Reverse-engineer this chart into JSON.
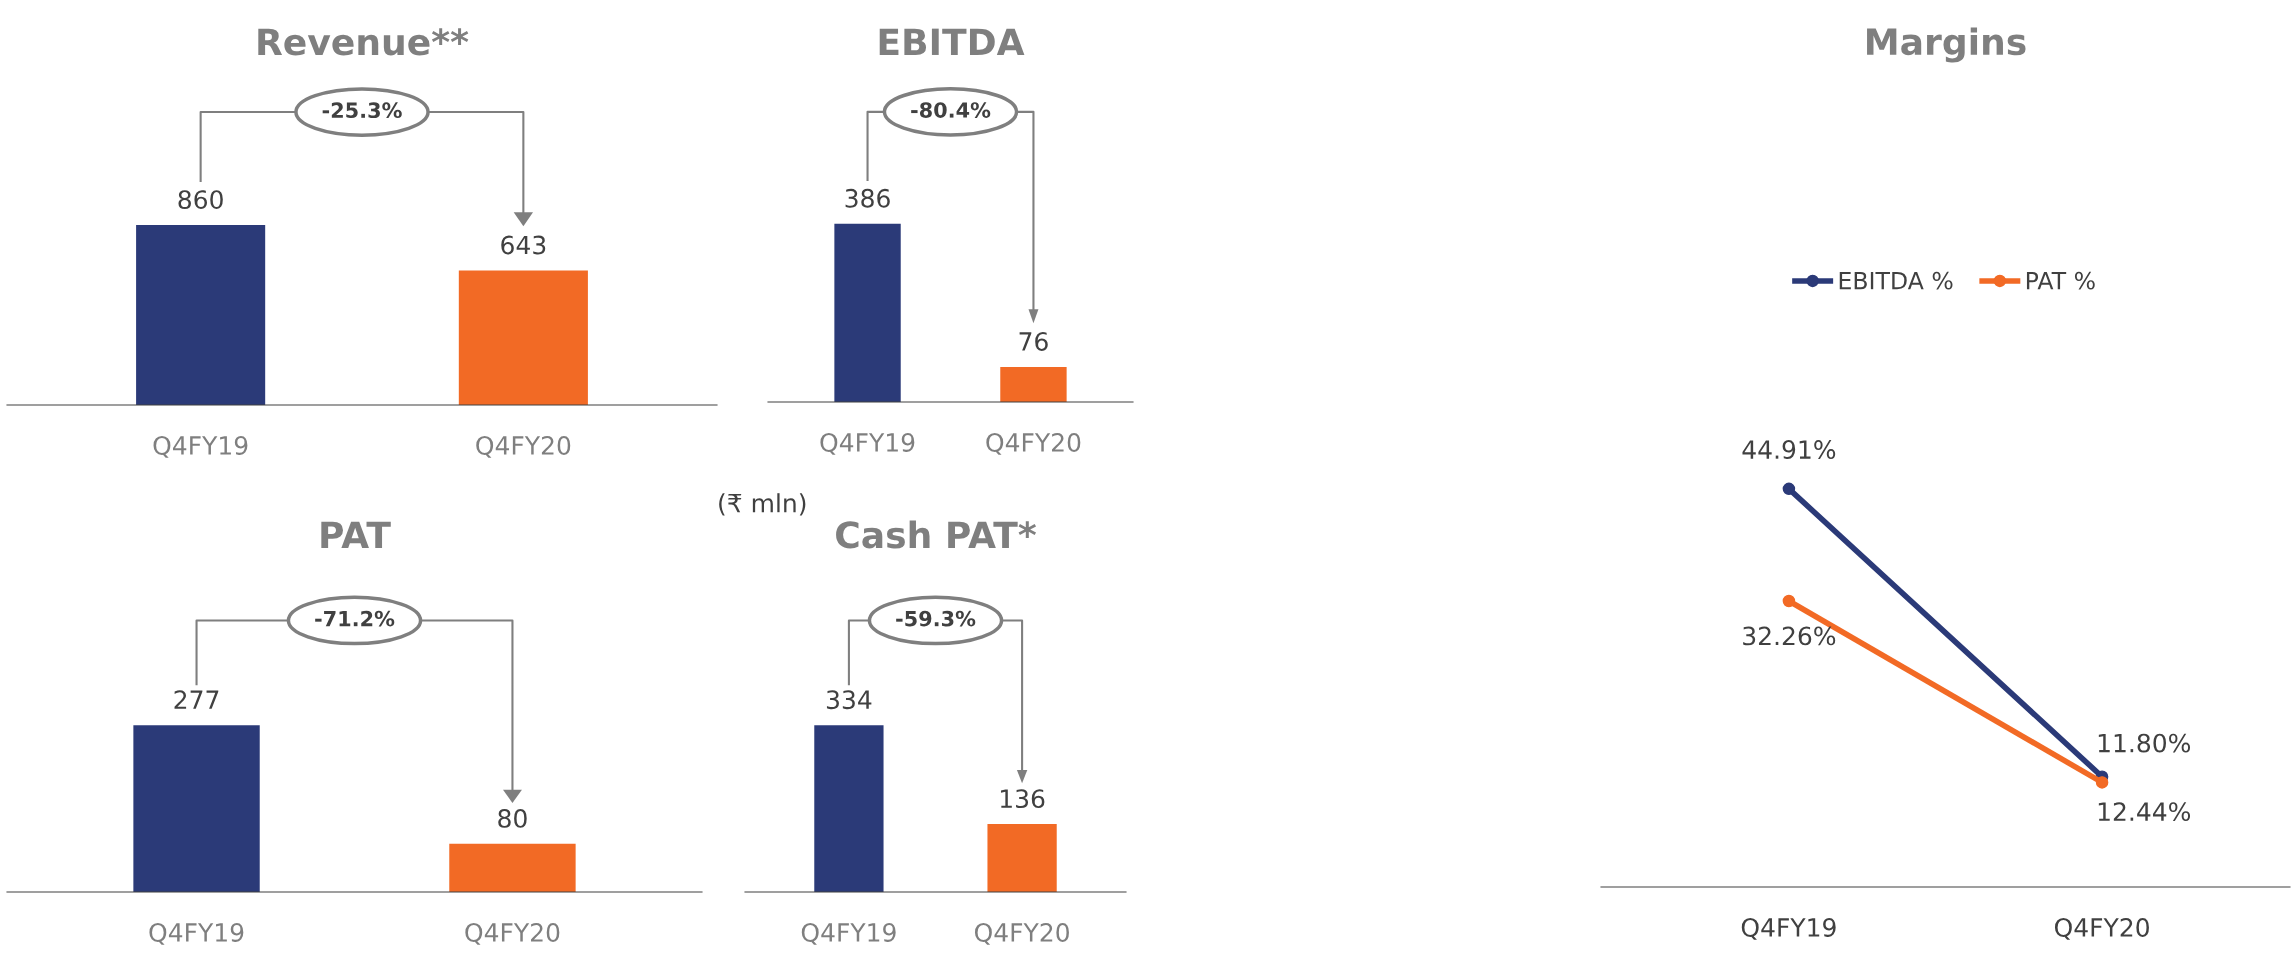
{
  "chart_data": [
    {
      "type": "bar",
      "title": "Revenue**",
      "categories": [
        "Q4FY19",
        "Q4FY20"
      ],
      "values": [
        860,
        643
      ],
      "colors": [
        "#2b3a78",
        "#f26a25"
      ],
      "data_labels": true,
      "annotations": [
        "-25.3%",
        "(₹ mln)"
      ]
    },
    {
      "type": "bar",
      "title": "EBITDA",
      "categories": [
        "Q4FY19",
        "Q4FY20"
      ],
      "values": [
        386,
        76
      ],
      "colors": [
        "#2b3a78",
        "#f26a25"
      ],
      "data_labels": true,
      "annotations": [
        "-80.4%"
      ]
    },
    {
      "type": "bar",
      "title": "PAT",
      "categories": [
        "Q4FY19",
        "Q4FY20"
      ],
      "values": [
        277,
        80
      ],
      "colors": [
        "#2b3a78",
        "#f26a25"
      ],
      "data_labels": true,
      "annotations": [
        "-71.2%"
      ]
    },
    {
      "type": "bar",
      "title": "Cash PAT*",
      "categories": [
        "Q4FY19",
        "Q4FY20"
      ],
      "values": [
        334,
        136
      ],
      "colors": [
        "#2b3a78",
        "#f26a25"
      ],
      "data_labels": true,
      "annotations": [
        "-59.3%"
      ]
    },
    {
      "type": "line",
      "title": "Margins",
      "categories": [
        "Q4FY19",
        "Q4FY20"
      ],
      "marker": "circle",
      "legend": "top",
      "series": [
        {
          "name": "EBITDA %",
          "color": "#2b3a78",
          "values": [
            44.91,
            12.44
          ],
          "value_labels": [
            "44.91%",
            "12.44%"
          ]
        },
        {
          "name": "PAT %",
          "color": "#f26a25",
          "values": [
            32.26,
            11.8
          ],
          "value_labels": [
            "32.26%",
            "11.80%"
          ]
        }
      ]
    }
  ]
}
